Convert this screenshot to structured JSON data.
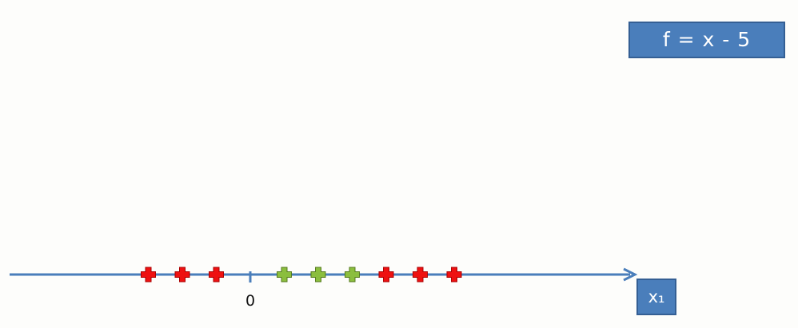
{
  "formula": "f = x - 5",
  "axis_label": "x₁",
  "origin_label": "0",
  "colors": {
    "axis": "#4a7ebb",
    "red_marker": "#ee1111",
    "red_marker_outline": "#aa0000",
    "green_marker": "#8bbe3e",
    "green_marker_outline": "#557a1e",
    "box_fill": "#4a7ebb"
  },
  "chart_data": {
    "type": "scatter",
    "xlabel": "x₁",
    "origin": 0,
    "points": [
      {
        "x": -3,
        "class": "red"
      },
      {
        "x": -2,
        "class": "red"
      },
      {
        "x": -1,
        "class": "red"
      },
      {
        "x": 1,
        "class": "green"
      },
      {
        "x": 2,
        "class": "green"
      },
      {
        "x": 3,
        "class": "green"
      },
      {
        "x": 4,
        "class": "red"
      },
      {
        "x": 5,
        "class": "red"
      },
      {
        "x": 6,
        "class": "red"
      }
    ]
  }
}
